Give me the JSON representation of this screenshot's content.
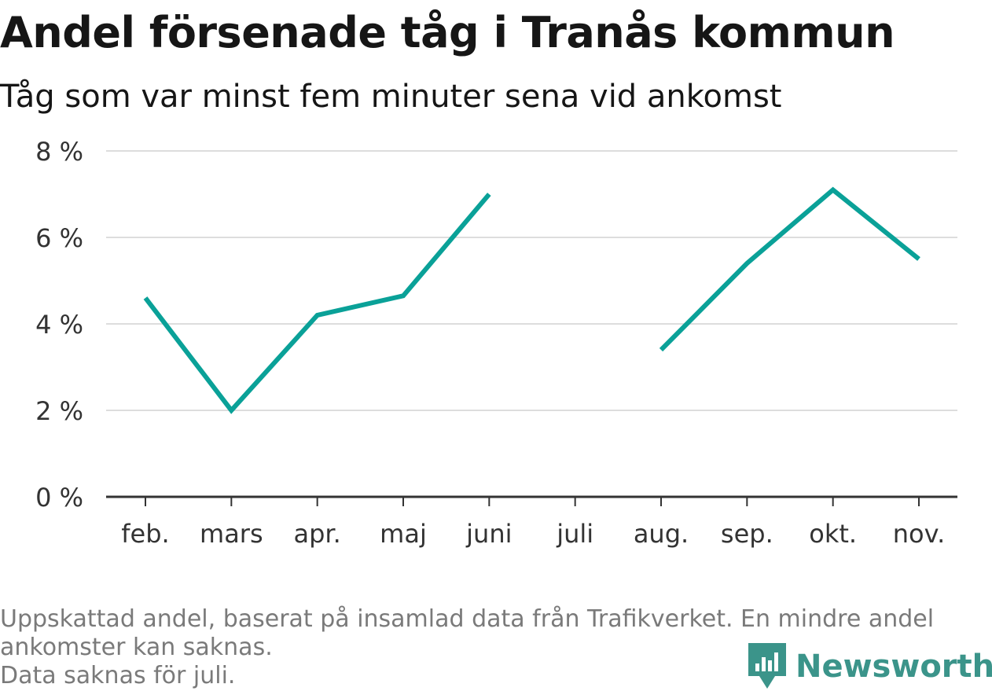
{
  "header": {
    "title": "Andel försenade tåg i Tranås kommun",
    "subtitle": "Tåg som var minst fem minuter sena vid ankomst"
  },
  "chart_data": {
    "type": "line",
    "title": "Andel försenade tåg i Tranås kommun",
    "subtitle": "Tåg som var minst fem minuter sena vid ankomst",
    "categories": [
      "feb.",
      "mars",
      "apr.",
      "maj",
      "juni",
      "juli",
      "aug.",
      "sep.",
      "okt.",
      "nov."
    ],
    "series": [
      {
        "values": [
          4.6,
          2.0,
          4.2,
          4.65,
          7.0,
          null,
          3.4,
          5.4,
          7.1,
          5.5
        ]
      }
    ],
    "ylim": [
      0,
      8
    ],
    "yticks": [
      0,
      2,
      4,
      6,
      8
    ],
    "ytick_labels": [
      "0 %",
      "2 %",
      "4 %",
      "6 %",
      "8 %"
    ],
    "grid": true,
    "colors": {
      "line": "#0aa198",
      "grid": "#dddddd",
      "axis": "#333333"
    }
  },
  "footer": {
    "note_line1": "Uppskattad andel, baserat på insamlad data från Trafikverket. En mindre andel",
    "note_line2": "ankomster kan saknas.",
    "note_line3": "Data saknas för juli.",
    "brand": "Newsworthy",
    "brand_icon": "bar-chart-bubble-icon",
    "brand_color": "#3b948a"
  }
}
